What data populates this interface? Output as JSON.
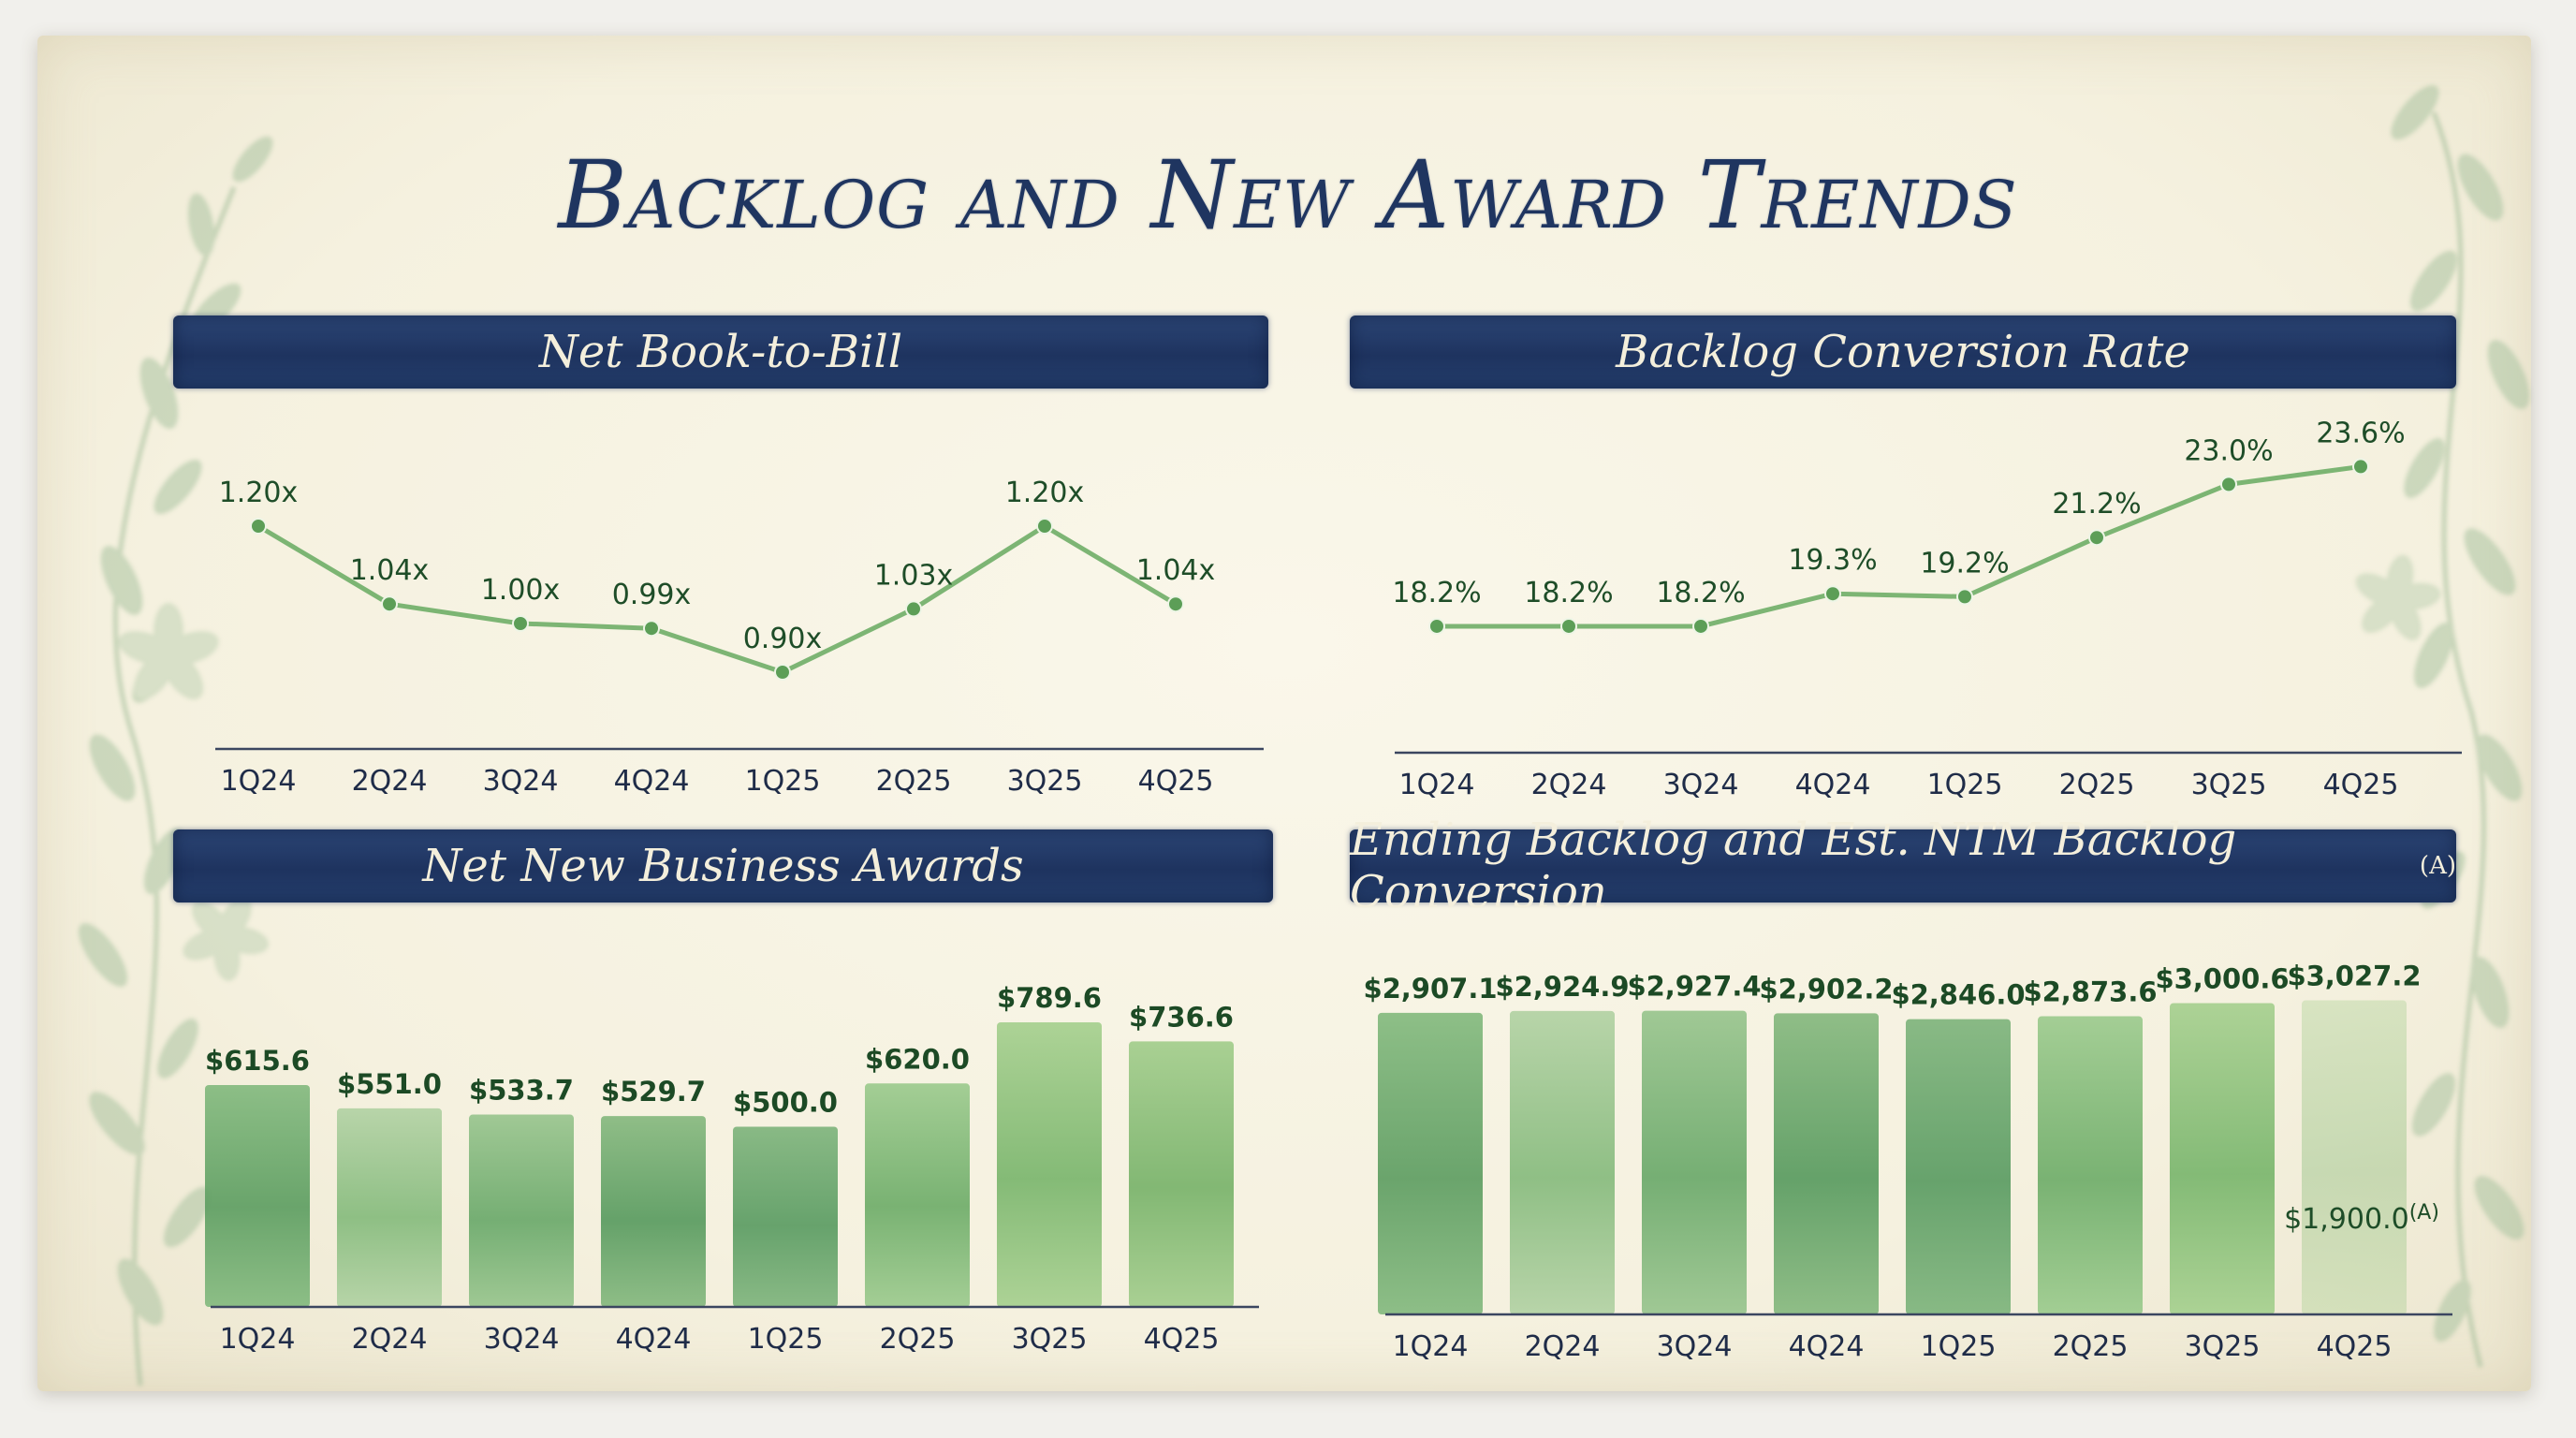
{
  "title": "Backlog and New Award Trends",
  "colors": {
    "navy": "#1f3560",
    "green": "#5da460",
    "label": "#1e4d28"
  },
  "panels": {
    "book_to_bill": {
      "title": "Net Book-to-Bill"
    },
    "conversion": {
      "title": "Backlog Conversion Rate"
    },
    "awards": {
      "title": "Net New Business Awards"
    },
    "backlog": {
      "title": "Ending Backlog and Est. NTM Backlog Conversion",
      "title_sup": "(A)"
    }
  },
  "chart_data": [
    {
      "id": "book_to_bill",
      "type": "line",
      "title": "Net Book-to-Bill",
      "categories": [
        "1Q24",
        "2Q24",
        "3Q24",
        "4Q24",
        "1Q25",
        "2Q25",
        "3Q25",
        "4Q25"
      ],
      "values": [
        1.2,
        1.04,
        1.0,
        0.99,
        0.9,
        1.03,
        1.2,
        1.04
      ],
      "labels": [
        "1.20x",
        "1.04x",
        "1.00x",
        "0.99x",
        "0.90x",
        "1.03x",
        "1.20x",
        "1.04x"
      ],
      "ylim": [
        0.8,
        1.3
      ]
    },
    {
      "id": "conversion",
      "type": "line",
      "title": "Backlog Conversion Rate",
      "categories": [
        "1Q24",
        "2Q24",
        "3Q24",
        "4Q24",
        "1Q25",
        "2Q25",
        "3Q25",
        "4Q25"
      ],
      "values": [
        18.2,
        18.2,
        18.2,
        19.3,
        19.2,
        21.2,
        23.0,
        23.6
      ],
      "labels": [
        "18.2%",
        "18.2%",
        "18.2%",
        "19.3%",
        "19.2%",
        "21.2%",
        "23.0%",
        "23.6%"
      ],
      "ylim": [
        15.0,
        24.5
      ]
    },
    {
      "id": "awards",
      "type": "bar",
      "title": "Net New Business Awards",
      "categories": [
        "1Q24",
        "2Q24",
        "3Q24",
        "4Q24",
        "1Q25",
        "2Q25",
        "3Q25",
        "4Q25"
      ],
      "values": [
        615.6,
        551.0,
        533.7,
        529.7,
        500.0,
        620.0,
        789.6,
        736.6
      ],
      "labels": [
        "$615.6",
        "$551.0",
        "$533.7",
        "$529.7",
        "$500.0",
        "$620.0",
        "$789.6",
        "$736.6"
      ],
      "ylim": [
        0,
        800
      ]
    },
    {
      "id": "backlog",
      "type": "bar",
      "title": "Ending Backlog and Est. NTM Backlog Conversion",
      "title_sup": "(A)",
      "categories": [
        "1Q24",
        "2Q24",
        "3Q24",
        "4Q24",
        "1Q25",
        "2Q25",
        "3Q25",
        "4Q25"
      ],
      "values": [
        2907.1,
        2924.9,
        2927.4,
        2902.2,
        2846.0,
        2873.6,
        3000.6,
        3027.2
      ],
      "labels": [
        "$2,907.1",
        "$2,924.9",
        "$2,927.4",
        "$2,902.2",
        "$2,846.0",
        "$2,873.6",
        "$3,000.6",
        "$3,027.2"
      ],
      "ylim": [
        0,
        3050
      ],
      "annotation": {
        "category": "4Q25",
        "value": 1900.0,
        "label": "$1,900.0",
        "sup": "(A)"
      }
    }
  ]
}
